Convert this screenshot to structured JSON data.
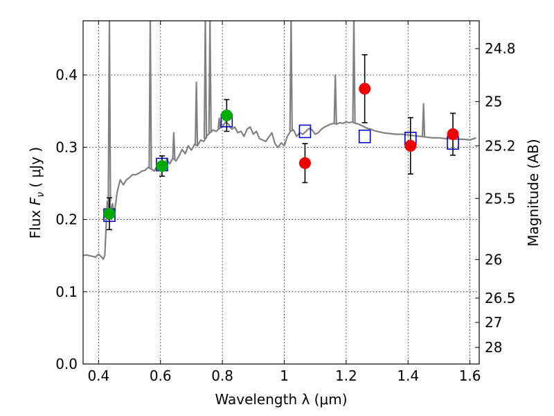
{
  "chart_data": {
    "type": "scatter",
    "xlabel": "Wavelength  λ (μm)",
    "ylabel": "Flux  F_ν  ( μJy )",
    "ylabel_right": "Magnitude (AB)",
    "xlim": [
      0.35,
      1.63
    ],
    "ylim": [
      0.0,
      0.475
    ],
    "grid": true,
    "x_ticks": [
      {
        "value": 0.4,
        "label": "0.4"
      },
      {
        "value": 0.6,
        "label": "0.6"
      },
      {
        "value": 0.8,
        "label": "0.8"
      },
      {
        "value": 1.0,
        "label": "1"
      },
      {
        "value": 1.2,
        "label": "1.2"
      },
      {
        "value": 1.4,
        "label": "1.4"
      },
      {
        "value": 1.6,
        "label": "1.6"
      }
    ],
    "y_ticks": [
      {
        "value": 0.0,
        "label": "0.0"
      },
      {
        "value": 0.1,
        "label": "0.1"
      },
      {
        "value": 0.2,
        "label": "0.2"
      },
      {
        "value": 0.3,
        "label": "0.3"
      },
      {
        "value": 0.4,
        "label": "0.4"
      }
    ],
    "right_ticks": [
      {
        "value": 24.8,
        "label": "24.8"
      },
      {
        "value": 25.0,
        "label": "25"
      },
      {
        "value": 25.2,
        "label": "25.2"
      },
      {
        "value": 25.5,
        "label": "25.5"
      },
      {
        "value": 26.0,
        "label": "26"
      },
      {
        "value": 26.5,
        "label": "26.5"
      },
      {
        "value": 27.0,
        "label": "27"
      },
      {
        "value": 28.0,
        "label": "28"
      }
    ],
    "magnitude_zero_point_ujy": 3631000000,
    "colors": {
      "model": "#808080",
      "green": "#00aa00",
      "red": "#ee0000",
      "blue": "#0000cc",
      "grid": "#000000"
    },
    "model_spectrum": {
      "x": [
        0.35,
        0.36,
        0.37,
        0.38,
        0.39,
        0.4,
        0.41,
        0.415,
        0.42,
        0.425,
        0.428,
        0.432,
        0.436,
        0.44,
        0.445,
        0.45,
        0.46,
        0.47,
        0.48,
        0.49,
        0.5,
        0.51,
        0.52,
        0.53,
        0.54,
        0.55,
        0.56,
        0.57,
        0.58,
        0.59,
        0.6,
        0.61,
        0.62,
        0.63,
        0.64,
        0.65,
        0.66,
        0.67,
        0.68,
        0.69,
        0.7,
        0.71,
        0.72,
        0.73,
        0.74,
        0.75,
        0.76,
        0.77,
        0.78,
        0.79,
        0.8,
        0.81,
        0.82,
        0.83,
        0.84,
        0.85,
        0.86,
        0.87,
        0.88,
        0.89,
        0.9,
        0.91,
        0.92,
        0.93,
        0.94,
        0.95,
        0.96,
        0.97,
        0.98,
        0.99,
        1.0,
        1.01,
        1.02,
        1.03,
        1.04,
        1.05,
        1.06,
        1.07,
        1.08,
        1.09,
        1.1,
        1.11,
        1.12,
        1.13,
        1.14,
        1.15,
        1.16,
        1.17,
        1.18,
        1.19,
        1.2,
        1.21,
        1.22,
        1.23,
        1.24,
        1.25,
        1.26,
        1.27,
        1.28,
        1.29,
        1.3,
        1.32,
        1.34,
        1.36,
        1.38,
        1.4,
        1.42,
        1.44,
        1.46,
        1.48,
        1.5,
        1.52,
        1.54,
        1.56,
        1.58,
        1.6,
        1.62
      ],
      "y": [
        0.15,
        0.151,
        0.15,
        0.149,
        0.148,
        0.152,
        0.148,
        0.145,
        0.15,
        0.195,
        0.225,
        0.215,
        0.228,
        0.21,
        0.222,
        0.205,
        0.238,
        0.255,
        0.248,
        0.255,
        0.258,
        0.262,
        0.262,
        0.264,
        0.267,
        0.268,
        0.272,
        0.27,
        0.267,
        0.275,
        0.276,
        0.27,
        0.283,
        0.277,
        0.285,
        0.281,
        0.288,
        0.297,
        0.291,
        0.302,
        0.296,
        0.304,
        0.302,
        0.31,
        0.308,
        0.316,
        0.32,
        0.324,
        0.322,
        0.326,
        0.328,
        0.335,
        0.332,
        0.325,
        0.328,
        0.32,
        0.322,
        0.315,
        0.325,
        0.328,
        0.318,
        0.322,
        0.312,
        0.31,
        0.308,
        0.314,
        0.32,
        0.305,
        0.3,
        0.306,
        0.302,
        0.315,
        0.322,
        0.324,
        0.315,
        0.32,
        0.318,
        0.322,
        0.326,
        0.324,
        0.318,
        0.32,
        0.325,
        0.328,
        0.33,
        0.332,
        0.333,
        0.332,
        0.334,
        0.333,
        0.335,
        0.334,
        0.335,
        0.333,
        0.332,
        0.33,
        0.328,
        0.326,
        0.325,
        0.323,
        0.322,
        0.32,
        0.319,
        0.318,
        0.318,
        0.317,
        0.316,
        0.315,
        0.314,
        0.313,
        0.313,
        0.312,
        0.312,
        0.311,
        0.311,
        0.31,
        0.313
      ]
    },
    "emission_lines": [
      {
        "x": 0.435,
        "peak": 0.48
      },
      {
        "x": 0.567,
        "peak": 0.48
      },
      {
        "x": 0.643,
        "peak": 0.32
      },
      {
        "x": 0.716,
        "peak": 0.39
      },
      {
        "x": 0.745,
        "peak": 0.48
      },
      {
        "x": 0.76,
        "peak": 0.48
      },
      {
        "x": 0.79,
        "peak": 0.34
      },
      {
        "x": 1.022,
        "peak": 0.48
      },
      {
        "x": 1.165,
        "peak": 0.4
      },
      {
        "x": 1.225,
        "peak": 0.48
      },
      {
        "x": 1.45,
        "peak": 0.36
      }
    ],
    "series": [
      {
        "marker": "circle",
        "color_key": "green",
        "points": [
          {
            "x": 0.435,
            "y": 0.208,
            "yerr": 0.022
          },
          {
            "x": 0.605,
            "y": 0.274,
            "yerr": 0.014
          },
          {
            "x": 0.814,
            "y": 0.344,
            "yerr": 0.022
          }
        ]
      },
      {
        "marker": "circle",
        "color_key": "red",
        "points": [
          {
            "x": 1.067,
            "y": 0.278,
            "yerr": 0.027
          },
          {
            "x": 1.26,
            "y": 0.381,
            "yerr": 0.047
          },
          {
            "x": 1.408,
            "y": 0.302,
            "yerr": 0.039
          },
          {
            "x": 1.545,
            "y": 0.318,
            "yerr": 0.029
          }
        ]
      },
      {
        "marker": "square-open",
        "color_key": "blue",
        "points": [
          {
            "x": 0.435,
            "y": 0.206
          },
          {
            "x": 0.605,
            "y": 0.276
          },
          {
            "x": 0.814,
            "y": 0.337
          },
          {
            "x": 1.067,
            "y": 0.322
          },
          {
            "x": 1.26,
            "y": 0.315
          },
          {
            "x": 1.408,
            "y": 0.312
          },
          {
            "x": 1.545,
            "y": 0.306
          }
        ]
      }
    ]
  }
}
